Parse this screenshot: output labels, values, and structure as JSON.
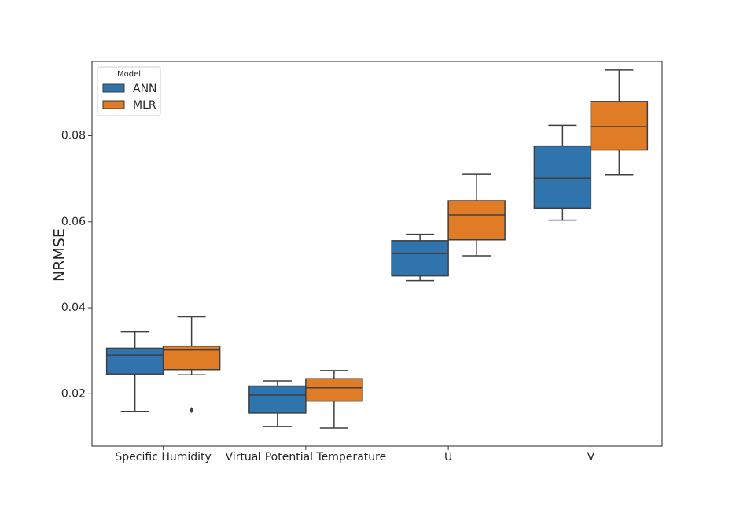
{
  "chart_data": {
    "type": "box",
    "title": "",
    "xlabel": "",
    "ylabel": "NRMSE",
    "ylim": [
      0.0078,
      0.0973
    ],
    "yticks": [
      0.02,
      0.04,
      0.06,
      0.08
    ],
    "ytick_labels": [
      "0.02",
      "0.04",
      "0.06",
      "0.08"
    ],
    "grid": false,
    "categories": [
      "Specific Humidity",
      "Virtual Potential Temperature",
      "U",
      "V"
    ],
    "legend": {
      "title": "Model",
      "placement": "top-left",
      "entries": [
        "ANN",
        "MLR"
      ]
    },
    "series": [
      {
        "name": "ANN",
        "color": "#2f74ac",
        "boxes": [
          {
            "whisker_low": 0.0159,
            "q1": 0.0246,
            "median": 0.029,
            "q3": 0.0306,
            "whisker_high": 0.0344,
            "outliers": []
          },
          {
            "whisker_low": 0.0124,
            "q1": 0.0155,
            "median": 0.0197,
            "q3": 0.0218,
            "whisker_high": 0.023,
            "outliers": []
          },
          {
            "whisker_low": 0.0463,
            "q1": 0.0474,
            "median": 0.0526,
            "q3": 0.0556,
            "whisker_high": 0.0571,
            "outliers": []
          },
          {
            "whisker_low": 0.0604,
            "q1": 0.0632,
            "median": 0.0702,
            "q3": 0.0776,
            "whisker_high": 0.0824,
            "outliers": []
          }
        ]
      },
      {
        "name": "MLR",
        "color": "#e07b26",
        "boxes": [
          {
            "whisker_low": 0.0244,
            "q1": 0.0256,
            "median": 0.0302,
            "q3": 0.0311,
            "whisker_high": 0.0379,
            "outliers": [
              0.0162
            ]
          },
          {
            "whisker_low": 0.012,
            "q1": 0.0183,
            "median": 0.0214,
            "q3": 0.0235,
            "whisker_high": 0.0254,
            "outliers": []
          },
          {
            "whisker_low": 0.0521,
            "q1": 0.0558,
            "median": 0.0616,
            "q3": 0.0649,
            "whisker_high": 0.0711,
            "outliers": []
          },
          {
            "whisker_low": 0.071,
            "q1": 0.0767,
            "median": 0.0821,
            "q3": 0.088,
            "whisker_high": 0.0953,
            "outliers": []
          }
        ]
      }
    ]
  }
}
